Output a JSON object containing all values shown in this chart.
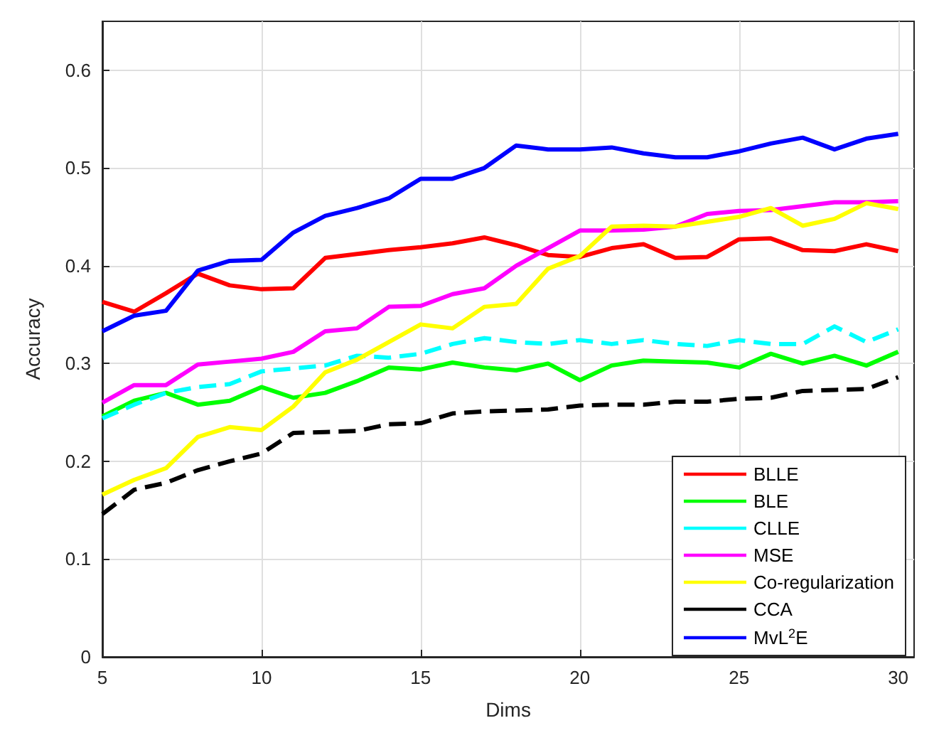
{
  "chart_data": {
    "type": "line",
    "xlabel": "Dims",
    "ylabel": "Accuracy",
    "x": [
      5,
      6,
      7,
      8,
      9,
      10,
      11,
      12,
      13,
      14,
      15,
      16,
      17,
      18,
      19,
      20,
      21,
      22,
      23,
      24,
      25,
      26,
      27,
      28,
      29,
      30
    ],
    "xlim": [
      5,
      30.5
    ],
    "xticks": [
      5,
      10,
      15,
      20,
      25,
      30
    ],
    "ylim": [
      0,
      0.65
    ],
    "yticks": [
      0,
      0.1,
      0.2,
      0.3,
      0.4,
      0.5,
      0.6
    ],
    "grid": true,
    "legend": "bottom right",
    "marker": "none",
    "series": [
      {
        "name": "BLLE",
        "color": "#ff0000",
        "line_style": "solid",
        "values": [
          0.363,
          0.353,
          0.372,
          0.392,
          0.38,
          0.376,
          0.377,
          0.408,
          0.412,
          0.416,
          0.419,
          0.423,
          0.429,
          0.421,
          0.411,
          0.409,
          0.418,
          0.422,
          0.408,
          0.409,
          0.427,
          0.428,
          0.416,
          0.415,
          0.422,
          0.415
        ]
      },
      {
        "name": "BLE",
        "color": "#00ff00",
        "line_style": "solid",
        "values": [
          0.246,
          0.262,
          0.27,
          0.258,
          0.262,
          0.276,
          0.265,
          0.27,
          0.282,
          0.296,
          0.294,
          0.301,
          0.296,
          0.293,
          0.3,
          0.283,
          0.298,
          0.303,
          0.302,
          0.301,
          0.296,
          0.31,
          0.3,
          0.308,
          0.298,
          0.312
        ]
      },
      {
        "name": "CLLE",
        "color": "#00ffff",
        "line_style": "dashed",
        "values": [
          0.244,
          0.258,
          0.27,
          0.276,
          0.279,
          0.292,
          0.295,
          0.298,
          0.308,
          0.306,
          0.31,
          0.32,
          0.326,
          0.322,
          0.32,
          0.324,
          0.32,
          0.324,
          0.32,
          0.318,
          0.324,
          0.32,
          0.32,
          0.338,
          0.322,
          0.335
        ]
      },
      {
        "name": "MSE",
        "color": "#ff00ff",
        "line_style": "solid",
        "values": [
          0.26,
          0.278,
          0.278,
          0.299,
          0.302,
          0.305,
          0.312,
          0.333,
          0.336,
          0.358,
          0.359,
          0.371,
          0.377,
          0.4,
          0.418,
          0.436,
          0.436,
          0.437,
          0.44,
          0.453,
          0.456,
          0.457,
          0.461,
          0.465,
          0.465,
          0.466
        ]
      },
      {
        "name": "Co-regularization",
        "color": "#ffff00",
        "line_style": "solid",
        "values": [
          0.166,
          0.181,
          0.193,
          0.225,
          0.235,
          0.232,
          0.256,
          0.291,
          0.304,
          0.322,
          0.34,
          0.336,
          0.358,
          0.361,
          0.397,
          0.41,
          0.44,
          0.441,
          0.44,
          0.445,
          0.45,
          0.459,
          0.441,
          0.448,
          0.464,
          0.458
        ]
      },
      {
        "name": "CCA",
        "color": "#000000",
        "line_style": "dashed",
        "values": [
          0.146,
          0.171,
          0.178,
          0.191,
          0.2,
          0.208,
          0.229,
          0.23,
          0.231,
          0.238,
          0.239,
          0.249,
          0.251,
          0.252,
          0.253,
          0.257,
          0.258,
          0.258,
          0.261,
          0.261,
          0.264,
          0.265,
          0.272,
          0.273,
          0.274,
          0.286
        ]
      },
      {
        "name": "MvL$^{2}$E",
        "color": "#0000ff",
        "line_style": "solid",
        "values": [
          0.333,
          0.349,
          0.354,
          0.395,
          0.405,
          0.406,
          0.434,
          0.451,
          0.459,
          0.469,
          0.489,
          0.489,
          0.5,
          0.523,
          0.519,
          0.519,
          0.521,
          0.515,
          0.511,
          0.511,
          0.517,
          0.525,
          0.531,
          0.519,
          0.53,
          0.535
        ]
      }
    ]
  }
}
